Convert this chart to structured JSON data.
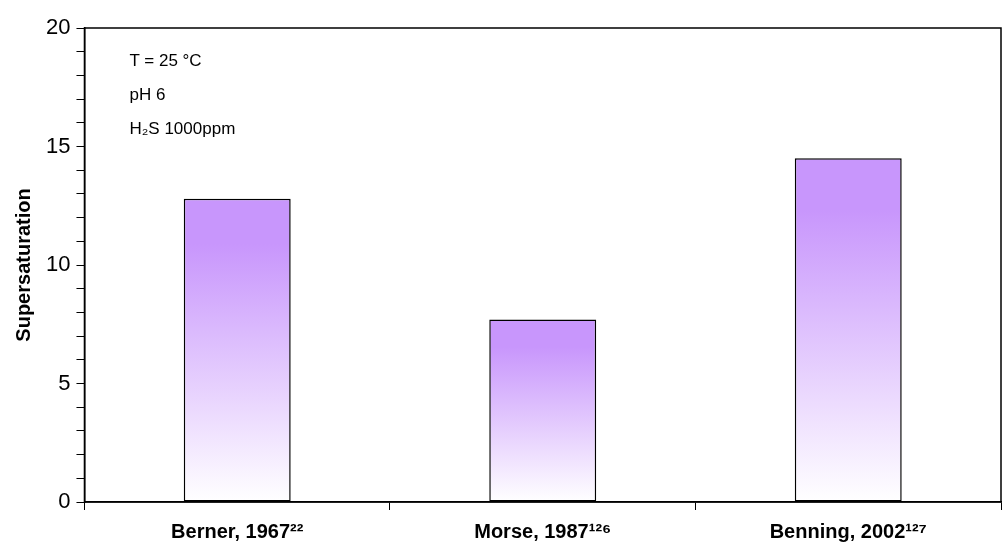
{
  "chart_data": {
    "type": "bar",
    "ylabel": "Supersaturation",
    "categories": [
      "Berner, 1967²²",
      "Morse, 1987¹²⁶",
      "Benning, 2002¹²⁷"
    ],
    "values": [
      12.8,
      7.7,
      14.5
    ],
    "color": "#c896fc",
    "ylim": [
      0,
      20
    ],
    "yticks": [
      0,
      {
        "value": 1,
        "label": null
      },
      {
        "value": 2,
        "label": null
      },
      {
        "value": 3,
        "label": null
      },
      {
        "value": 4,
        "label": null
      },
      5,
      {
        "value": 6,
        "label": null
      },
      {
        "value": 7,
        "label": null
      },
      {
        "value": 8,
        "label": null
      },
      {
        "value": 9,
        "label": null
      },
      10,
      {
        "value": 11,
        "label": null
      },
      {
        "value": 12,
        "label": null
      },
      {
        "value": 13,
        "label": null
      },
      {
        "value": 14,
        "label": null
      },
      15,
      {
        "value": 16,
        "label": null
      },
      {
        "value": 17,
        "label": null
      },
      {
        "value": 18,
        "label": null
      },
      {
        "value": 19,
        "label": null
      },
      20
    ],
    "annotations": [
      "T = 25 °C",
      "pH 6",
      "H₂S 1000ppm"
    ],
    "grid": false,
    "legend": false
  }
}
